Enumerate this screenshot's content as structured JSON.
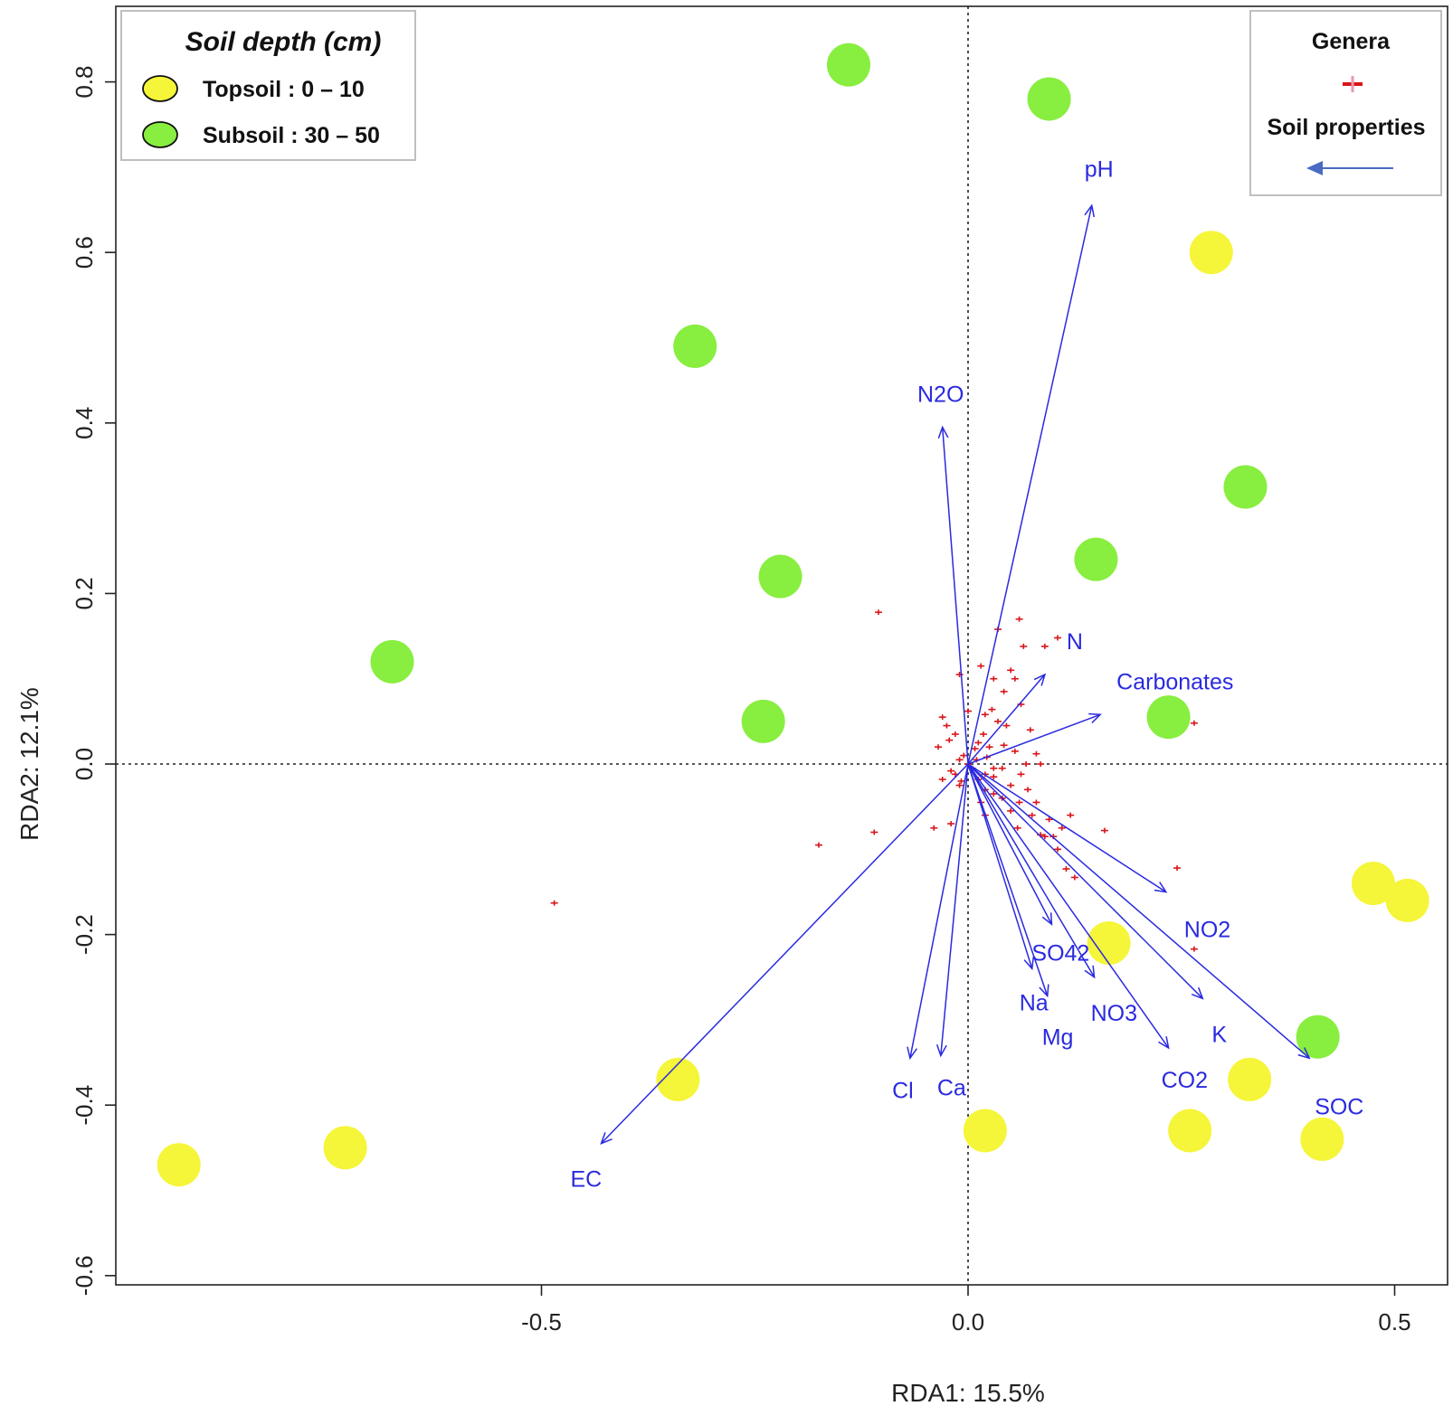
{
  "chart_data": {
    "type": "scatter",
    "title": "",
    "xlabel": "RDA1: 15.5%",
    "ylabel": "RDA2: 12.1%",
    "xlim": [
      -1.0,
      0.56
    ],
    "ylim": [
      -0.61,
      0.88
    ],
    "xticks": [
      -0.5,
      0.0,
      0.5
    ],
    "xtick_labels": [
      "-0.5",
      "0.0",
      "0.5"
    ],
    "yticks": [
      -0.6,
      -0.4,
      -0.2,
      0.0,
      0.2,
      0.4,
      0.6,
      0.8
    ],
    "ytick_labels": [
      "-0.6",
      "-0.4",
      "-0.2",
      "0.0",
      "0.2",
      "0.4",
      "0.6",
      "0.8"
    ],
    "reference_lines": {
      "x": 0.0,
      "y": 0.0,
      "style": "dotted"
    },
    "sites": [
      {
        "name": "Topsoil : 0 – 10",
        "color": "#f5f53a",
        "points": [
          [
            0.285,
            0.6
          ],
          [
            0.475,
            -0.14
          ],
          [
            0.515,
            -0.16
          ],
          [
            0.165,
            -0.21
          ],
          [
            -0.34,
            -0.37
          ],
          [
            0.33,
            -0.37
          ],
          [
            0.02,
            -0.43
          ],
          [
            0.26,
            -0.43
          ],
          [
            0.415,
            -0.44
          ],
          [
            -0.73,
            -0.45
          ],
          [
            -0.925,
            -0.47
          ]
        ]
      },
      {
        "name": "Subsoil : 30 – 50",
        "color": "#88ee3f",
        "points": [
          [
            -0.14,
            0.82
          ],
          [
            0.095,
            0.78
          ],
          [
            -0.32,
            0.49
          ],
          [
            0.325,
            0.325
          ],
          [
            0.15,
            0.24
          ],
          [
            -0.22,
            0.22
          ],
          [
            -0.675,
            0.12
          ],
          [
            -0.24,
            0.05
          ],
          [
            0.235,
            0.055
          ],
          [
            0.41,
            -0.32
          ]
        ]
      }
    ],
    "genera": [
      [
        -0.105,
        0.178
      ],
      [
        0.06,
        0.17
      ],
      [
        0.035,
        0.158
      ],
      [
        0.105,
        0.148
      ],
      [
        0.065,
        0.138
      ],
      [
        0.09,
        0.138
      ],
      [
        0.015,
        0.115
      ],
      [
        -0.01,
        0.105
      ],
      [
        0.03,
        0.1
      ],
      [
        0.055,
        0.1
      ],
      [
        0.0,
        0.062
      ],
      [
        -0.03,
        0.055
      ],
      [
        -0.025,
        0.045
      ],
      [
        0.02,
        0.058
      ],
      [
        0.035,
        0.05
      ],
      [
        0.045,
        0.045
      ],
      [
        -0.015,
        0.035
      ],
      [
        0.012,
        0.025
      ],
      [
        0.025,
        0.02
      ],
      [
        -0.035,
        0.02
      ],
      [
        0.055,
        0.015
      ],
      [
        0.08,
        0.012
      ],
      [
        -0.01,
        0.005
      ],
      [
        0.01,
        0.005
      ],
      [
        0.04,
        -0.005
      ],
      [
        0.085,
        0.0
      ],
      [
        -0.02,
        -0.008
      ],
      [
        0.02,
        -0.012
      ],
      [
        0.03,
        -0.015
      ],
      [
        -0.03,
        -0.018
      ],
      [
        0.05,
        -0.025
      ],
      [
        0.07,
        -0.03
      ],
      [
        0.03,
        -0.035
      ],
      [
        0.06,
        -0.045
      ],
      [
        0.08,
        -0.045
      ],
      [
        0.04,
        -0.04
      ],
      [
        0.02,
        -0.03
      ],
      [
        -0.01,
        -0.025
      ],
      [
        0.015,
        -0.045
      ],
      [
        0.05,
        -0.055
      ],
      [
        0.075,
        -0.06
      ],
      [
        0.095,
        -0.065
      ],
      [
        0.11,
        -0.075
      ],
      [
        0.09,
        -0.085
      ],
      [
        0.1,
        -0.085
      ],
      [
        0.12,
        -0.06
      ],
      [
        0.16,
        -0.078
      ],
      [
        -0.02,
        -0.07
      ],
      [
        0.02,
        -0.06
      ],
      [
        -0.04,
        -0.075
      ],
      [
        -0.11,
        -0.08
      ],
      [
        -0.175,
        -0.095
      ],
      [
        0.265,
        0.048
      ],
      [
        0.245,
        -0.122
      ],
      [
        0.265,
        -0.217
      ],
      [
        0.115,
        -0.123
      ],
      [
        0.125,
        -0.133
      ],
      [
        0.105,
        -0.1
      ],
      [
        0.085,
        -0.083
      ],
      [
        0.058,
        -0.075
      ],
      [
        -0.485,
        -0.163
      ],
      [
        0.0,
        0.0
      ],
      [
        0.005,
        -0.005
      ],
      [
        -0.005,
        0.01
      ],
      [
        0.012,
        -0.018
      ],
      [
        0.022,
        0.008
      ],
      [
        -0.015,
        -0.012
      ],
      [
        0.008,
        0.018
      ],
      [
        0.03,
        -0.005
      ],
      [
        -0.008,
        -0.02
      ],
      [
        0.042,
        0.022
      ],
      [
        0.018,
        0.035
      ],
      [
        -0.022,
        0.028
      ],
      [
        0.062,
        -0.012
      ],
      [
        0.028,
        0.064
      ],
      [
        0.042,
        0.085
      ],
      [
        0.05,
        0.11
      ],
      [
        0.062,
        0.07
      ],
      [
        0.073,
        0.04
      ],
      [
        0.068,
        0.0
      ]
    ],
    "vectors": [
      {
        "name": "pH",
        "x": 0.145,
        "y": 0.655
      },
      {
        "name": "N2O",
        "x": -0.03,
        "y": 0.395
      },
      {
        "name": "N",
        "x": 0.09,
        "y": 0.105
      },
      {
        "name": "Carbonates",
        "x": 0.155,
        "y": 0.058
      },
      {
        "name": "NO2",
        "x": 0.232,
        "y": -0.15
      },
      {
        "name": "SO42",
        "x": 0.098,
        "y": -0.188
      },
      {
        "name": "Na",
        "x": 0.075,
        "y": -0.24
      },
      {
        "name": "Mg",
        "x": 0.093,
        "y": -0.272
      },
      {
        "name": "NO3",
        "x": 0.148,
        "y": -0.25
      },
      {
        "name": "K",
        "x": 0.275,
        "y": -0.275
      },
      {
        "name": "CO2",
        "x": 0.235,
        "y": -0.333
      },
      {
        "name": "SOC",
        "x": 0.4,
        "y": -0.345
      },
      {
        "name": "Cl",
        "x": -0.068,
        "y": -0.345
      },
      {
        "name": "Ca",
        "x": -0.032,
        "y": -0.342
      },
      {
        "name": "EC",
        "x": -0.43,
        "y": -0.445
      }
    ]
  },
  "legend_depth": {
    "title": "Soil depth (cm)",
    "items": [
      {
        "label": "Topsoil : 0 – 10",
        "color": "#f5f53a"
      },
      {
        "label": "Subsoil : 30 – 50",
        "color": "#88ee3f"
      }
    ]
  },
  "legend_types": {
    "genera_label": "Genera",
    "properties_label": "Soil properties"
  },
  "colors": {
    "vector": "#2a2ae0",
    "genera": "#d9151a",
    "legend_arrow": "#4a6bc2"
  }
}
